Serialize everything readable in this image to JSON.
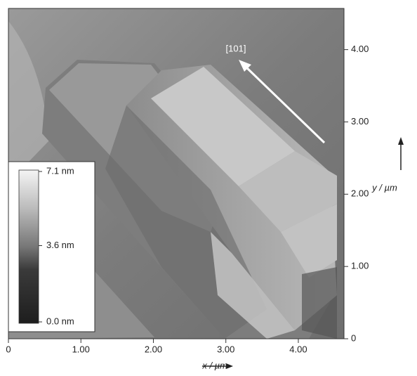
{
  "chart_data": {
    "type": "image",
    "annotation": "[101]",
    "xlabel": "x / µm",
    "ylabel": "y / µm",
    "xlim": [
      0,
      4.63
    ],
    "ylim": [
      0,
      4.57
    ],
    "xticks": [
      0,
      {
        "value": 1,
        "label": "1.00"
      },
      {
        "value": 2,
        "label": "2.00"
      },
      {
        "value": 3,
        "label": "3.00"
      },
      {
        "value": 4,
        "label": "4.00"
      }
    ],
    "yticks": [
      0,
      {
        "value": 1,
        "label": "1.00"
      },
      {
        "value": 2,
        "label": "2.00"
      },
      {
        "value": 3,
        "label": "3.00"
      },
      {
        "value": 4,
        "label": "4.00"
      }
    ],
    "colorbar": {
      "lim": [
        0,
        7.1
      ],
      "ticks": [
        {
          "value": 7.1,
          "label": "7.1 nm"
        },
        {
          "value": 3.6,
          "label": "3.6 nm"
        },
        {
          "value": 0,
          "label": "0.0 nm"
        }
      ]
    }
  }
}
